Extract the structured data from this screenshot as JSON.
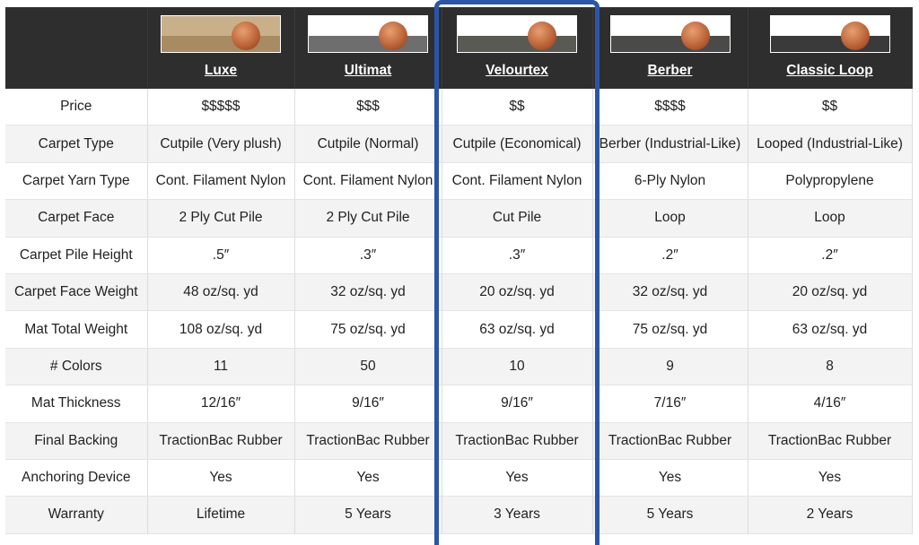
{
  "highlight_color": "#2b55a8",
  "products": [
    {
      "name": "Luxe",
      "image": "carpet-sample-with-penny",
      "bg": "#c9b08a",
      "pile": "#a88b62"
    },
    {
      "name": "Ultimat",
      "image": "carpet-sample-with-penny",
      "bg": "#ffffff",
      "pile": "#6e6e6e"
    },
    {
      "name": "Velourtex",
      "image": "carpet-sample-with-penny",
      "bg": "#ffffff",
      "pile": "#5a5a55"
    },
    {
      "name": "Berber",
      "image": "carpet-sample-with-penny",
      "bg": "#ffffff",
      "pile": "#4a4a48"
    },
    {
      "name": "Classic Loop",
      "image": "carpet-sample-with-penny",
      "bg": "#ffffff",
      "pile": "#3a3a3a"
    }
  ],
  "rows": [
    {
      "label": "Price",
      "values": [
        "$$$$$",
        "$$$",
        "$$",
        "$$$$",
        "$$"
      ]
    },
    {
      "label": "Carpet Type",
      "values": [
        "Cutpile (Very plush)",
        "Cutpile (Normal)",
        "Cutpile (Economical)",
        "Berber (Industrial-Like)",
        "Looped (Industrial-Like)"
      ]
    },
    {
      "label": "Carpet Yarn Type",
      "values": [
        "Cont. Filament Nylon",
        "Cont. Filament Nylon",
        "Cont. Filament Nylon",
        "6-Ply Nylon",
        "Polypropylene"
      ]
    },
    {
      "label": "Carpet Face",
      "values": [
        "2 Ply Cut Pile",
        "2 Ply Cut Pile",
        "Cut Pile",
        "Loop",
        "Loop"
      ]
    },
    {
      "label": "Carpet Pile Height",
      "values": [
        ".5″",
        ".3″",
        ".3″",
        ".2″",
        ".2″"
      ]
    },
    {
      "label": "Carpet Face Weight",
      "values": [
        "48 oz/sq. yd",
        "32 oz/sq. yd",
        "20 oz/sq. yd",
        "32 oz/sq. yd",
        "20 oz/sq. yd"
      ]
    },
    {
      "label": "Mat Total Weight",
      "values": [
        "108 oz/sq. yd",
        "75 oz/sq. yd",
        "63 oz/sq. yd",
        "75 oz/sq. yd",
        "63 oz/sq. yd"
      ]
    },
    {
      "label": "# Colors",
      "values": [
        "11",
        "50",
        "10",
        "9",
        "8"
      ]
    },
    {
      "label": "Mat Thickness",
      "values": [
        "12/16″",
        "9/16″",
        "9/16″",
        "7/16″",
        "4/16″"
      ]
    },
    {
      "label": "Final Backing",
      "values": [
        "TractionBac Rubber",
        "TractionBac Rubber",
        "TractionBac Rubber",
        "TractionBac Rubber",
        "TractionBac Rubber"
      ]
    },
    {
      "label": "Anchoring Device",
      "values": [
        "Yes",
        "Yes",
        "Yes",
        "Yes",
        "Yes"
      ]
    },
    {
      "label": "Warranty",
      "values": [
        "Lifetime",
        "5 Years",
        "3 Years",
        "5 Years",
        "2 Years"
      ]
    }
  ]
}
